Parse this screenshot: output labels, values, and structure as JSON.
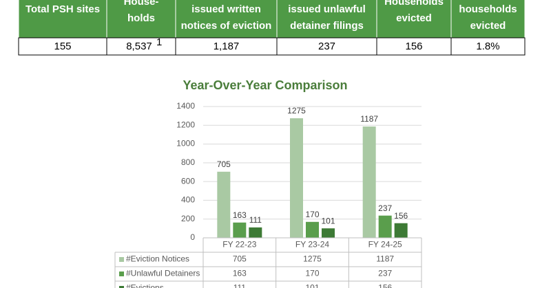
{
  "table": {
    "header": [
      [
        "Total PSH sites"
      ],
      [
        "House-",
        "holds"
      ],
      [
        "issued written",
        "notices of eviction"
      ],
      [
        "issued unlawful",
        "detainer filings"
      ],
      [
        "Households",
        "evicted"
      ],
      [
        "households",
        "evicted"
      ]
    ],
    "row": [
      "155",
      "8,537",
      "1,187",
      "237",
      "156",
      "1.8%"
    ],
    "footnote_mark": "1"
  },
  "chart_data": {
    "type": "bar",
    "title": "Year-Over-Year Comparison",
    "categories": [
      "FY 22-23",
      "FY 23-24",
      "FY 24-25"
    ],
    "series": [
      {
        "name": "#Eviction Notices",
        "color": "#a9c9a3",
        "values": [
          705,
          1275,
          1187
        ]
      },
      {
        "name": "#Unlawful Detainers",
        "color": "#5a9e4c",
        "values": [
          163,
          170,
          237
        ]
      },
      {
        "name": "#Evictions",
        "color": "#3d7a35",
        "values": [
          111,
          101,
          156
        ]
      }
    ],
    "ylim": [
      0,
      1400
    ],
    "yticks": [
      0,
      200,
      400,
      600,
      800,
      1000,
      1200,
      1400
    ],
    "grid": true
  }
}
